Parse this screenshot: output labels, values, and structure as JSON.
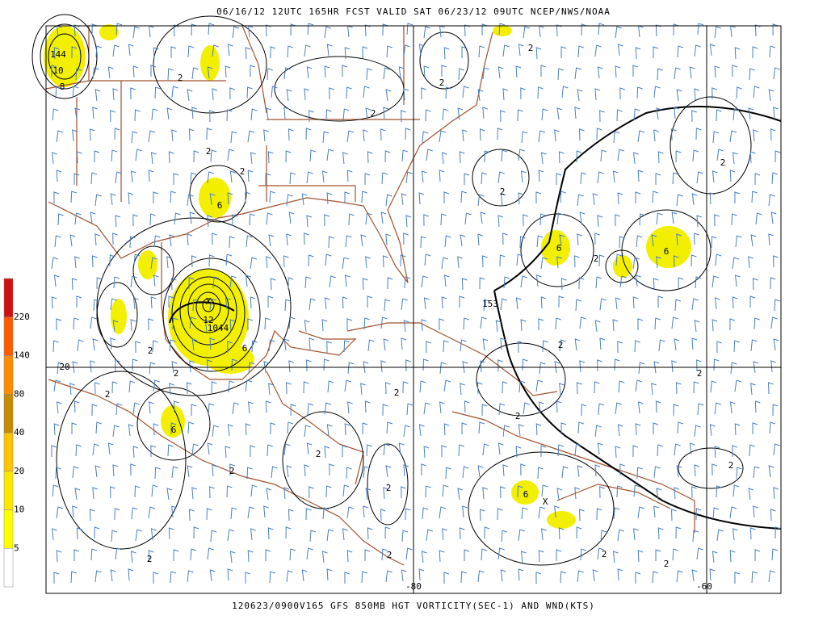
{
  "header": "06/16/12 12UTC  165HR  FCST VALID SAT 06/23/12 09UTC  NCEP/NWS/NOAA",
  "footer": "120623/0900V165 GFS 850MB HGT VORTICITY(SEC-1) AND WND(KTS)",
  "colorbar": {
    "labels": [
      "5",
      "10",
      "20",
      "40",
      "80",
      "140",
      "220"
    ],
    "colors": [
      "#ffffff",
      "#ffff00",
      "#ffe800",
      "#ffc400",
      "#c88a00",
      "#ff8c00",
      "#ff5a00",
      "#d01010"
    ]
  },
  "grid_labels": [
    "20",
    "-80",
    "-60"
  ],
  "contour_labels": [
    "144",
    "10",
    "8",
    "2",
    "2",
    "2",
    "2",
    "2",
    "2",
    "6",
    "2",
    "2",
    "6",
    "2",
    "6",
    "153",
    "X",
    "12",
    "1044",
    "6",
    "2",
    "2",
    "2",
    "2",
    "2",
    "2",
    "2",
    "6",
    "2",
    "2",
    "2",
    "2",
    "6",
    "X",
    "2",
    "2",
    "2",
    "2"
  ]
}
